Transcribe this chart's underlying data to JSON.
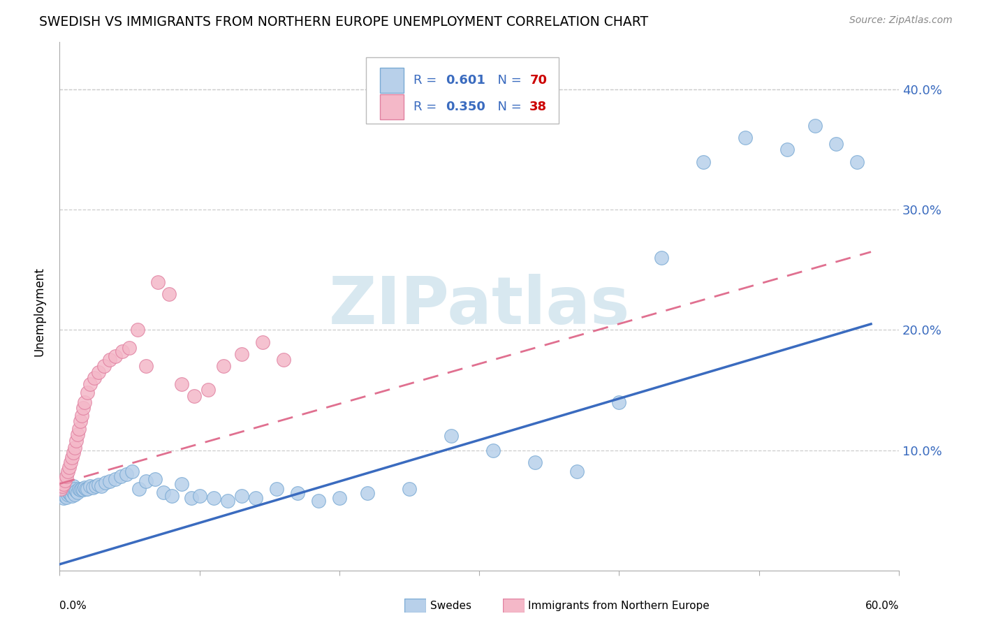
{
  "title": "SWEDISH VS IMMIGRANTS FROM NORTHERN EUROPE UNEMPLOYMENT CORRELATION CHART",
  "source": "Source: ZipAtlas.com",
  "ylabel": "Unemployment",
  "y_tick_labels": [
    "",
    "10.0%",
    "20.0%",
    "30.0%",
    "40.0%"
  ],
  "y_tick_vals": [
    0.0,
    0.1,
    0.2,
    0.3,
    0.4
  ],
  "xlim": [
    0.0,
    0.6
  ],
  "ylim": [
    0.0,
    0.44
  ],
  "legend_label1": "Swedes",
  "legend_label2": "Immigrants from Northern Europe",
  "color_blue_fill": "#b8d0ea",
  "color_blue_edge": "#7aaad4",
  "color_pink_fill": "#f4b8c8",
  "color_pink_edge": "#e080a0",
  "color_blue_line": "#3a6bbf",
  "color_pink_line": "#e07090",
  "color_r_n": "#3a6bbf",
  "color_n_val": "#cc0000",
  "watermark_color": "#d8e8f0",
  "grid_color": "#cccccc",
  "swedes_x": [
    0.001,
    0.002,
    0.003,
    0.003,
    0.004,
    0.004,
    0.005,
    0.005,
    0.006,
    0.006,
    0.007,
    0.007,
    0.008,
    0.008,
    0.009,
    0.009,
    0.01,
    0.01,
    0.011,
    0.011,
    0.012,
    0.013,
    0.014,
    0.015,
    0.016,
    0.017,
    0.018,
    0.019,
    0.02,
    0.022,
    0.024,
    0.026,
    0.028,
    0.03,
    0.033,
    0.036,
    0.04,
    0.044,
    0.048,
    0.052,
    0.057,
    0.062,
    0.068,
    0.074,
    0.08,
    0.087,
    0.094,
    0.1,
    0.11,
    0.12,
    0.13,
    0.14,
    0.155,
    0.17,
    0.185,
    0.2,
    0.22,
    0.25,
    0.28,
    0.31,
    0.34,
    0.37,
    0.4,
    0.43,
    0.46,
    0.49,
    0.52,
    0.54,
    0.555,
    0.57
  ],
  "swedes_y": [
    0.064,
    0.065,
    0.06,
    0.067,
    0.062,
    0.068,
    0.061,
    0.066,
    0.063,
    0.069,
    0.064,
    0.07,
    0.063,
    0.068,
    0.062,
    0.067,
    0.065,
    0.07,
    0.063,
    0.068,
    0.066,
    0.065,
    0.068,
    0.067,
    0.068,
    0.067,
    0.069,
    0.068,
    0.068,
    0.07,
    0.069,
    0.07,
    0.071,
    0.07,
    0.073,
    0.074,
    0.076,
    0.078,
    0.08,
    0.082,
    0.068,
    0.074,
    0.076,
    0.065,
    0.062,
    0.072,
    0.06,
    0.062,
    0.06,
    0.058,
    0.062,
    0.06,
    0.068,
    0.064,
    0.058,
    0.06,
    0.064,
    0.068,
    0.112,
    0.1,
    0.09,
    0.082,
    0.14,
    0.26,
    0.34,
    0.36,
    0.35,
    0.37,
    0.355,
    0.34
  ],
  "immigrants_x": [
    0.001,
    0.002,
    0.003,
    0.004,
    0.005,
    0.006,
    0.007,
    0.008,
    0.009,
    0.01,
    0.011,
    0.012,
    0.013,
    0.014,
    0.015,
    0.016,
    0.017,
    0.018,
    0.02,
    0.022,
    0.025,
    0.028,
    0.032,
    0.036,
    0.04,
    0.045,
    0.05,
    0.056,
    0.062,
    0.07,
    0.078,
    0.087,
    0.096,
    0.106,
    0.117,
    0.13,
    0.145,
    0.16
  ],
  "immigrants_y": [
    0.068,
    0.07,
    0.072,
    0.075,
    0.078,
    0.082,
    0.086,
    0.09,
    0.094,
    0.098,
    0.102,
    0.108,
    0.113,
    0.118,
    0.124,
    0.129,
    0.135,
    0.14,
    0.148,
    0.155,
    0.16,
    0.165,
    0.17,
    0.175,
    0.178,
    0.182,
    0.185,
    0.2,
    0.17,
    0.24,
    0.23,
    0.155,
    0.145,
    0.15,
    0.17,
    0.18,
    0.19,
    0.175
  ],
  "blue_trend_x0": 0.0,
  "blue_trend_y0": 0.005,
  "blue_trend_x1": 0.58,
  "blue_trend_y1": 0.205,
  "pink_trend_x0": 0.0,
  "pink_trend_y0": 0.072,
  "pink_trend_x1": 0.58,
  "pink_trend_y1": 0.265
}
